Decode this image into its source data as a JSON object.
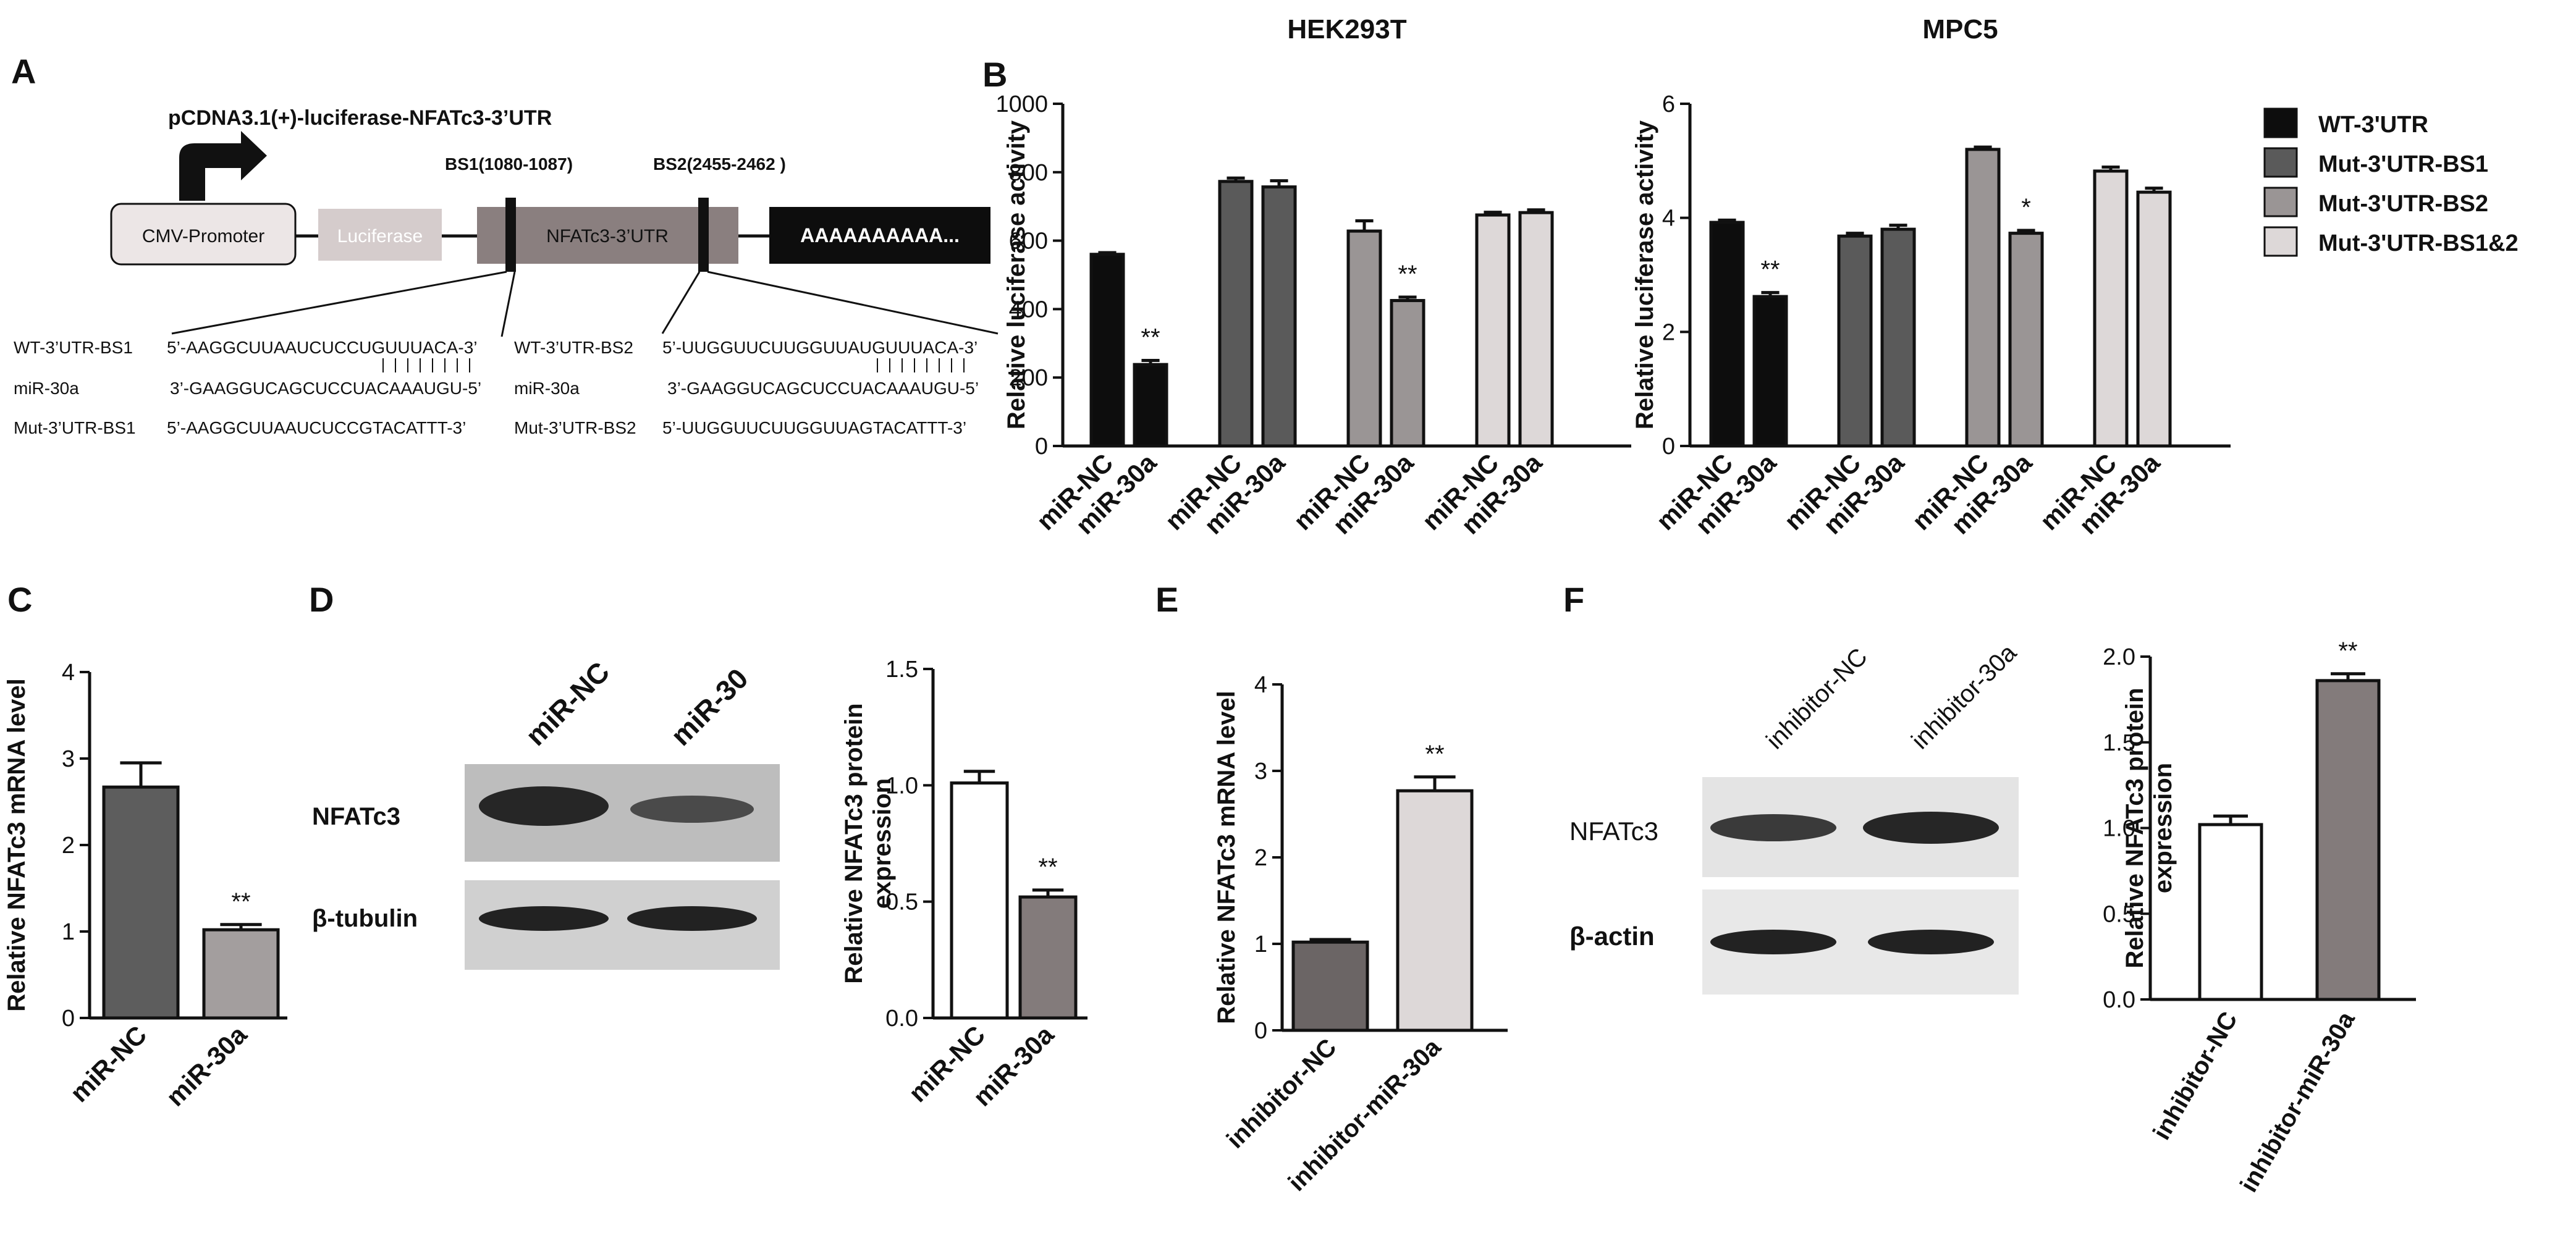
{
  "figure": {
    "panels": {
      "A": {
        "label": "A",
        "construct_title": "pCDNA3.1(+)-luciferase-NFATc3-3’UTR",
        "promoter": "CMV-Promoter",
        "reporter": "Luciferase",
        "utr": "NFATc3-3’UTR",
        "polyA": "AAAAAAAAAA...",
        "bs1": "BS1(1080-1087)",
        "bs2": "BS2(2455-2462 )",
        "seq_left": {
          "labels": [
            "WT-3’UTR-BS1",
            "miR-30a",
            "Mut-3’UTR-BS1"
          ],
          "sequences": [
            "5’-AAGGCUUAAUCUCCUGUUUACA-3’",
            "3’-GAAGGUCAGCUCCUACAAAUGU-5’",
            "5’-AAGGCUUAAUCUCCGTACATTT-3’"
          ]
        },
        "seq_right": {
          "labels": [
            "WT-3’UTR-BS2",
            "miR-30a",
            "Mut-3’UTR-BS2"
          ],
          "sequences": [
            "5’-UUGGUUCUUGGUUAUGUUUACA-3’",
            "3’-GAAGGUCAGCUCCUACAAAUGU-5’",
            "5’-UUGGUUCUUGGUUAGTACATTT-3’"
          ]
        }
      },
      "B_label": "B",
      "C_label": "C",
      "D_label": "D",
      "E_label": "E",
      "F_label": "F",
      "blot_D": {
        "lanes": [
          "miR-NC",
          "miR-30"
        ],
        "rows": [
          "NFATc3",
          "β-tubulin"
        ]
      },
      "blot_F": {
        "lanes": [
          "inhibitor-NC",
          "inhibitor-30a"
        ],
        "rows": [
          "NFATc3",
          "β-actin"
        ]
      }
    },
    "legend": [
      "WT-3'UTR",
      "Mut-3'UTR-BS1",
      "Mut-3'UTR-BS2",
      "Mut-3'UTR-BS1&2"
    ],
    "colors": {
      "wt": "#0d0d0d",
      "bs1": "#5a5a5a",
      "bs2": "#9a9595",
      "bs12": "#ddd8d8",
      "c_nc": "#5d5d5d",
      "c_30a": "#a39e9e",
      "d_nc": "#ffffff",
      "d_30a": "#837b7b",
      "e_nc": "#6b6565",
      "e_30a": "#ddd8d8",
      "f_nc": "#ffffff",
      "f_30a": "#837b7b"
    }
  },
  "chart_data": [
    {
      "id": "B-HEK293T",
      "type": "bar",
      "title": "HEK293T",
      "ylabel": "Relative luciferase activity",
      "ylim": [
        0,
        1000
      ],
      "yticks": [
        "0",
        "200",
        "400",
        "600",
        "800",
        "1000"
      ],
      "categories": [
        "miR-NC",
        "miR-30a",
        "miR-NC",
        "miR-30a",
        "miR-NC",
        "miR-30a",
        "miR-NC",
        "miR-30a"
      ],
      "groups": [
        "WT-3'UTR",
        "Mut-3'UTR-BS1",
        "Mut-3'UTR-BS2",
        "Mut-3'UTR-BS1&2"
      ],
      "values": [
        560,
        238,
        773,
        757,
        628,
        425,
        675,
        682
      ],
      "errors": [
        5,
        12,
        10,
        18,
        30,
        10,
        8,
        8
      ],
      "annotations": [
        "",
        "**",
        "",
        "",
        "",
        "**",
        "",
        ""
      ]
    },
    {
      "id": "B-MPC5",
      "type": "bar",
      "title": "MPC5",
      "ylabel": "Relative luciferase activity",
      "ylim": [
        0,
        6
      ],
      "yticks": [
        "0",
        "2",
        "4",
        "6"
      ],
      "categories": [
        "miR-NC",
        "miR-30a",
        "miR-NC",
        "miR-30a",
        "miR-NC",
        "miR-30a",
        "miR-NC",
        "miR-30a"
      ],
      "groups": [
        "WT-3'UTR",
        "Mut-3'UTR-BS1",
        "Mut-3'UTR-BS2",
        "Mut-3'UTR-BS1&2"
      ],
      "values": [
        3.92,
        2.62,
        3.68,
        3.8,
        5.2,
        3.73,
        4.82,
        4.45
      ],
      "errors": [
        0.04,
        0.07,
        0.05,
        0.07,
        0.04,
        0.05,
        0.07,
        0.07
      ],
      "annotations": [
        "",
        "**",
        "",
        "",
        "",
        "*",
        "",
        ""
      ]
    },
    {
      "id": "C",
      "type": "bar",
      "title": "",
      "ylabel": "Relative NFATc3 mRNA level",
      "ylim": [
        0,
        4
      ],
      "yticks": [
        "0",
        "1",
        "2",
        "3",
        "4"
      ],
      "categories": [
        "miR-NC",
        "miR-30a"
      ],
      "values": [
        2.67,
        1.02
      ],
      "errors": [
        0.28,
        0.06
      ],
      "annotations": [
        "",
        "**"
      ]
    },
    {
      "id": "D",
      "type": "bar",
      "title": "",
      "ylabel": "Relative NFATc3 protein expression",
      "ylim": [
        0,
        1.5
      ],
      "yticks": [
        "0.0",
        "0.5",
        "1.0",
        "1.5"
      ],
      "categories": [
        "miR-NC",
        "miR-30a"
      ],
      "values": [
        1.01,
        0.52
      ],
      "errors": [
        0.05,
        0.03
      ],
      "annotations": [
        "",
        "**"
      ]
    },
    {
      "id": "E",
      "type": "bar",
      "title": "",
      "ylabel": "Relative NFATc3 mRNA level",
      "ylim": [
        0,
        4
      ],
      "yticks": [
        "0",
        "1",
        "2",
        "3",
        "4"
      ],
      "categories": [
        "inhibitor-NC",
        "inhibitor-miR-30a"
      ],
      "values": [
        1.02,
        2.77
      ],
      "errors": [
        0.03,
        0.16
      ],
      "annotations": [
        "",
        "**"
      ]
    },
    {
      "id": "F",
      "type": "bar",
      "title": "",
      "ylabel": "Relative NFATc3 protein expression",
      "ylim": [
        0,
        2.0
      ],
      "yticks": [
        "0.0",
        "0.5",
        "1.0",
        "1.5",
        "2.0"
      ],
      "categories": [
        "inhibitor-NC",
        "inhibitor-miR-30a"
      ],
      "values": [
        1.02,
        1.86
      ],
      "errors": [
        0.05,
        0.04
      ],
      "annotations": [
        "",
        "**"
      ]
    }
  ]
}
